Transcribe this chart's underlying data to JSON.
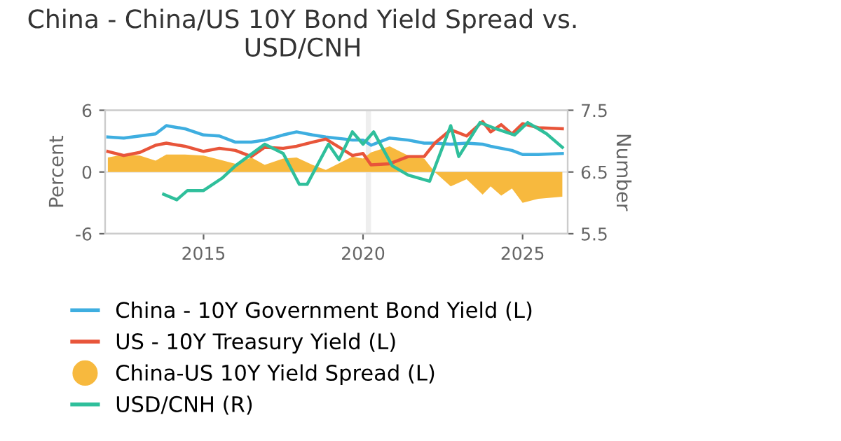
{
  "chart_data": {
    "type": "line",
    "title": "China - China/US 10Y Bond Yield Spread vs. USD/CNH",
    "ylabel": "Percent",
    "y2label": "Number",
    "xlim": [
      "2011-12",
      "2026-06"
    ],
    "xticks": [
      "2015",
      "2020",
      "2025"
    ],
    "ylim": [
      -6,
      6
    ],
    "yticks": [
      -6,
      0,
      6
    ],
    "y2lim": [
      5.5,
      7.5
    ],
    "y2ticks": [
      5.5,
      6.5,
      7.5
    ],
    "grid": "y",
    "legend": "bottom",
    "bands": [
      {
        "axis": "x",
        "from": "2020-02",
        "to": "2020-04",
        "color": "#eeeeee"
      }
    ],
    "series": [
      {
        "name": "China - 10Y Government Bond Yield (L)",
        "color": "#3eaee0",
        "x": [
          "2012-01",
          "2012-07",
          "2013-01",
          "2013-07",
          "2013-11",
          "2014-06",
          "2015-01",
          "2015-07",
          "2016-01",
          "2016-07",
          "2016-12",
          "2017-07",
          "2017-12",
          "2018-06",
          "2018-11",
          "2019-06",
          "2019-09",
          "2020-01",
          "2020-04",
          "2020-11",
          "2021-06",
          "2021-12",
          "2022-04",
          "2022-10",
          "2023-04",
          "2023-10",
          "2024-01",
          "2024-05",
          "2024-09",
          "2025-01",
          "2025-07",
          "2026-04"
        ],
        "values": [
          3.4,
          3.3,
          3.5,
          3.7,
          4.5,
          4.2,
          3.6,
          3.5,
          2.9,
          2.9,
          3.1,
          3.6,
          3.9,
          3.6,
          3.4,
          3.2,
          3.1,
          3.1,
          2.6,
          3.3,
          3.1,
          2.8,
          2.8,
          2.7,
          2.8,
          2.7,
          2.5,
          2.3,
          2.1,
          1.7,
          1.7,
          1.8
        ]
      },
      {
        "name": "US - 10Y Treasury Yield (L)",
        "color": "#e8553a",
        "x": [
          "2012-01",
          "2012-07",
          "2013-01",
          "2013-07",
          "2013-11",
          "2014-06",
          "2015-01",
          "2015-07",
          "2016-01",
          "2016-07",
          "2016-12",
          "2017-07",
          "2017-12",
          "2018-06",
          "2018-11",
          "2019-06",
          "2019-09",
          "2020-01",
          "2020-04",
          "2020-11",
          "2021-06",
          "2021-12",
          "2022-04",
          "2022-10",
          "2023-04",
          "2023-10",
          "2024-01",
          "2024-05",
          "2024-09",
          "2025-01",
          "2025-07",
          "2026-04"
        ],
        "values": [
          2.0,
          1.6,
          1.9,
          2.6,
          2.8,
          2.5,
          2.0,
          2.3,
          2.1,
          1.5,
          2.4,
          2.3,
          2.5,
          2.9,
          3.2,
          2.1,
          1.6,
          1.8,
          0.7,
          0.8,
          1.5,
          1.5,
          2.8,
          4.1,
          3.5,
          4.9,
          3.9,
          4.6,
          3.7,
          4.7,
          4.3,
          4.2
        ]
      },
      {
        "name": "China-US 10Y Yield Spread (L)",
        "type": "area",
        "color": "#f7b93e",
        "x": [
          "2012-01",
          "2012-07",
          "2013-01",
          "2013-07",
          "2013-11",
          "2014-06",
          "2015-01",
          "2015-07",
          "2016-01",
          "2016-07",
          "2016-12",
          "2017-07",
          "2017-12",
          "2018-06",
          "2018-11",
          "2019-06",
          "2019-09",
          "2020-01",
          "2020-04",
          "2020-11",
          "2021-06",
          "2021-12",
          "2022-04",
          "2022-10",
          "2023-04",
          "2023-10",
          "2024-01",
          "2024-05",
          "2024-09",
          "2025-01",
          "2025-07",
          "2026-04"
        ],
        "values": [
          1.4,
          1.7,
          1.6,
          1.1,
          1.7,
          1.7,
          1.6,
          1.2,
          0.8,
          1.4,
          0.7,
          1.3,
          1.4,
          0.7,
          0.2,
          1.1,
          1.5,
          1.3,
          1.9,
          2.5,
          1.6,
          1.3,
          0,
          -1.4,
          -0.7,
          -2.2,
          -1.4,
          -2.3,
          -1.6,
          -3.0,
          -2.6,
          -2.4
        ]
      },
      {
        "name": "USD/CNH (R)",
        "axis": "y2",
        "color": "#2fbf9b",
        "x": [
          "2013-10",
          "2014-03",
          "2014-07",
          "2015-01",
          "2015-08",
          "2016-01",
          "2016-12",
          "2017-07",
          "2018-01",
          "2018-04",
          "2018-12",
          "2019-04",
          "2019-09",
          "2020-01",
          "2020-05",
          "2020-12",
          "2021-06",
          "2022-02",
          "2022-10",
          "2023-01",
          "2023-09",
          "2024-03",
          "2024-10",
          "2025-03",
          "2025-05",
          "2025-10",
          "2026-04"
        ],
        "values": [
          6.14,
          6.05,
          6.2,
          6.2,
          6.4,
          6.6,
          6.95,
          6.8,
          6.3,
          6.3,
          6.95,
          6.7,
          7.15,
          6.95,
          7.15,
          6.6,
          6.45,
          6.35,
          7.25,
          6.75,
          7.3,
          7.2,
          7.1,
          7.3,
          7.25,
          7.12,
          6.9
        ]
      }
    ]
  }
}
